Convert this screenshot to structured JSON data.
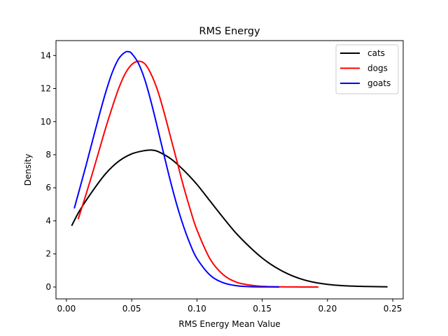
{
  "chart_data": {
    "type": "line",
    "title": "RMS Energy",
    "xlabel": "RMS Energy Mean Value",
    "ylabel": "Density",
    "xlim": [
      -0.008,
      0.258
    ],
    "ylim": [
      -0.72,
      14.9
    ],
    "xticks": [
      0.0,
      0.05,
      0.1,
      0.15,
      0.2,
      0.25
    ],
    "xtick_labels": [
      "0.00",
      "0.05",
      "0.10",
      "0.15",
      "0.20",
      "0.25"
    ],
    "yticks": [
      0,
      2,
      4,
      6,
      8,
      10,
      12,
      14
    ],
    "ytick_labels": [
      "0",
      "2",
      "4",
      "6",
      "8",
      "10",
      "12",
      "14"
    ],
    "grid": false,
    "legend_position": "top-right",
    "series": [
      {
        "name": "cats",
        "color": "#000000",
        "x": [
          0.004,
          0.01,
          0.02,
          0.03,
          0.04,
          0.05,
          0.06,
          0.065,
          0.07,
          0.08,
          0.09,
          0.1,
          0.11,
          0.12,
          0.13,
          0.14,
          0.15,
          0.16,
          0.17,
          0.18,
          0.19,
          0.2,
          0.21,
          0.22,
          0.23,
          0.246
        ],
        "y": [
          3.7,
          4.6,
          5.8,
          6.85,
          7.6,
          8.05,
          8.25,
          8.28,
          8.2,
          7.75,
          7.05,
          6.2,
          5.2,
          4.2,
          3.25,
          2.45,
          1.75,
          1.2,
          0.78,
          0.48,
          0.28,
          0.16,
          0.09,
          0.05,
          0.03,
          0.01
        ]
      },
      {
        "name": "dogs",
        "color": "#ff0000",
        "x": [
          0.009,
          0.015,
          0.02,
          0.025,
          0.03,
          0.035,
          0.04,
          0.045,
          0.05,
          0.055,
          0.06,
          0.065,
          0.07,
          0.075,
          0.08,
          0.085,
          0.09,
          0.095,
          0.1,
          0.11,
          0.12,
          0.13,
          0.14,
          0.15,
          0.16,
          0.17,
          0.18,
          0.193
        ],
        "y": [
          4.1,
          5.6,
          6.9,
          8.25,
          9.6,
          10.85,
          12.0,
          12.9,
          13.45,
          13.65,
          13.5,
          12.85,
          11.85,
          10.5,
          9.0,
          7.5,
          6.0,
          4.65,
          3.45,
          1.7,
          0.75,
          0.3,
          0.12,
          0.04,
          0.015,
          0.006,
          0.002,
          0.0
        ]
      },
      {
        "name": "goats",
        "color": "#0000ff",
        "x": [
          0.006,
          0.01,
          0.015,
          0.02,
          0.025,
          0.03,
          0.035,
          0.04,
          0.045,
          0.048,
          0.05,
          0.055,
          0.06,
          0.065,
          0.07,
          0.075,
          0.08,
          0.085,
          0.09,
          0.095,
          0.1,
          0.11,
          0.12,
          0.13,
          0.14,
          0.15,
          0.163
        ],
        "y": [
          4.75,
          5.9,
          7.35,
          8.85,
          10.35,
          11.75,
          12.95,
          13.8,
          14.2,
          14.22,
          14.12,
          13.55,
          12.55,
          11.15,
          9.55,
          7.9,
          6.3,
          4.85,
          3.6,
          2.55,
          1.72,
          0.72,
          0.26,
          0.08,
          0.02,
          0.005,
          0.001
        ]
      }
    ]
  }
}
